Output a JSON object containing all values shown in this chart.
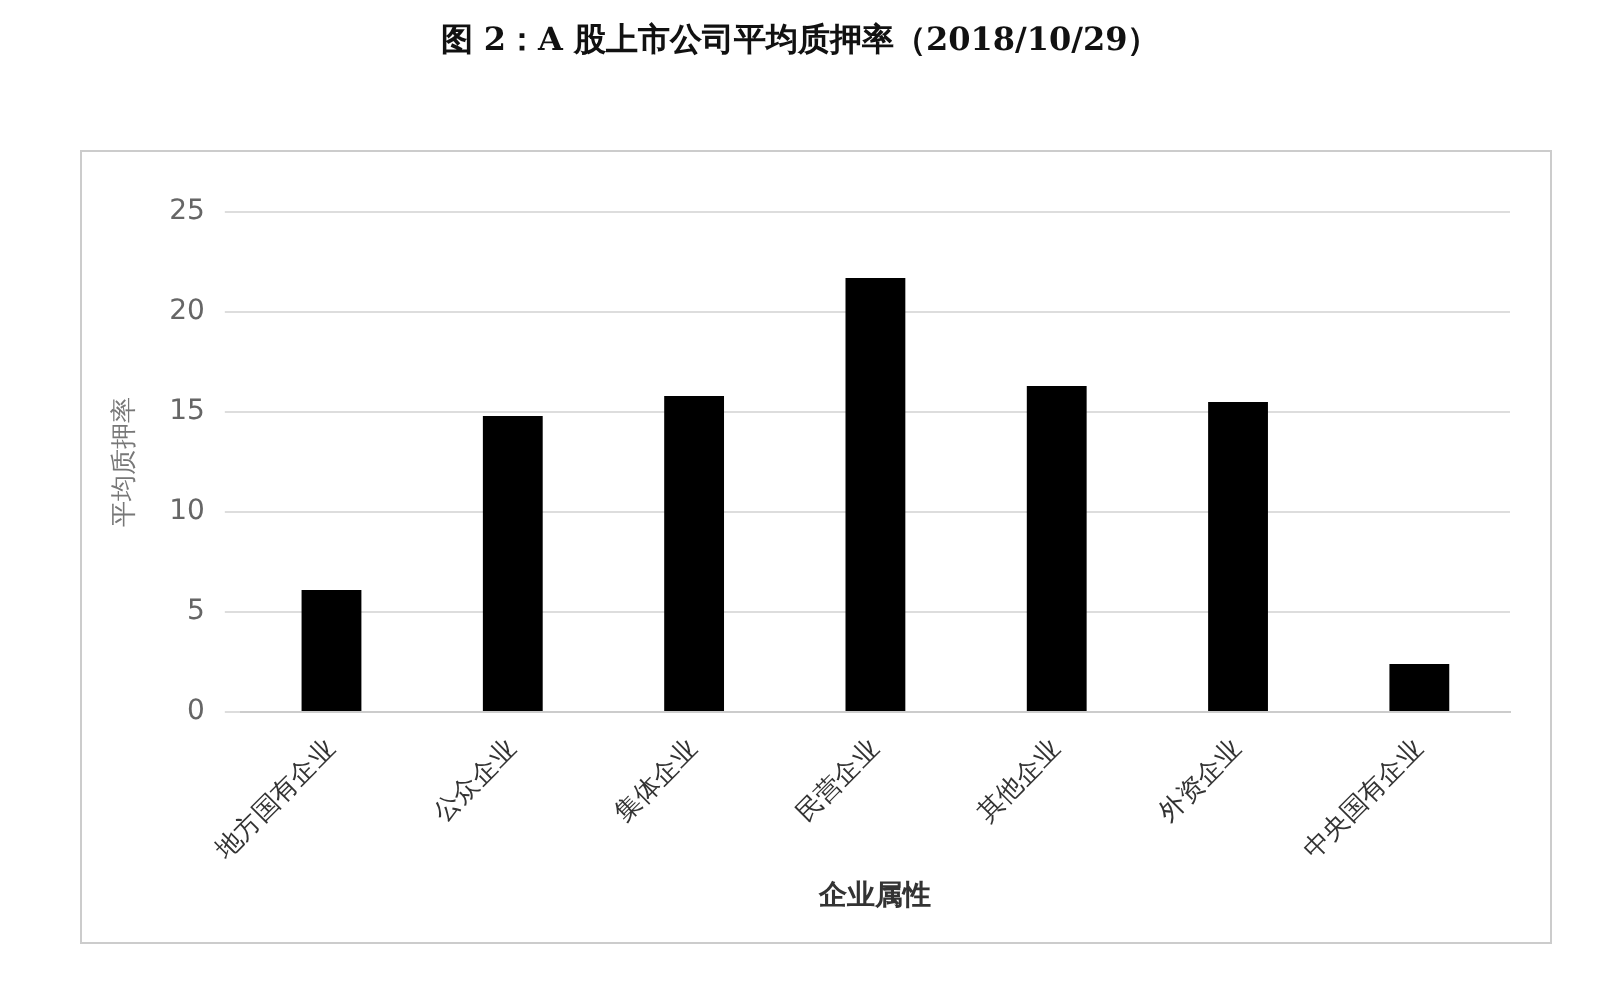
{
  "chart_data": {
    "type": "bar",
    "title": "图 2：A 股上市公司平均质押率（2018/10/29）",
    "xlabel": "企业属性",
    "ylabel": "平均质押率",
    "categories": [
      "地方国有企业",
      "公众企业",
      "集体企业",
      "民营企业",
      "其他企业",
      "外资企业",
      "中央国有企业"
    ],
    "values": [
      6.1,
      14.8,
      15.8,
      21.7,
      16.3,
      15.5,
      2.4
    ],
    "color": "#000000",
    "ylim": [
      0,
      25
    ],
    "yticks": [
      0,
      5,
      10,
      15,
      20,
      25
    ],
    "grid": "y",
    "legend": false
  }
}
